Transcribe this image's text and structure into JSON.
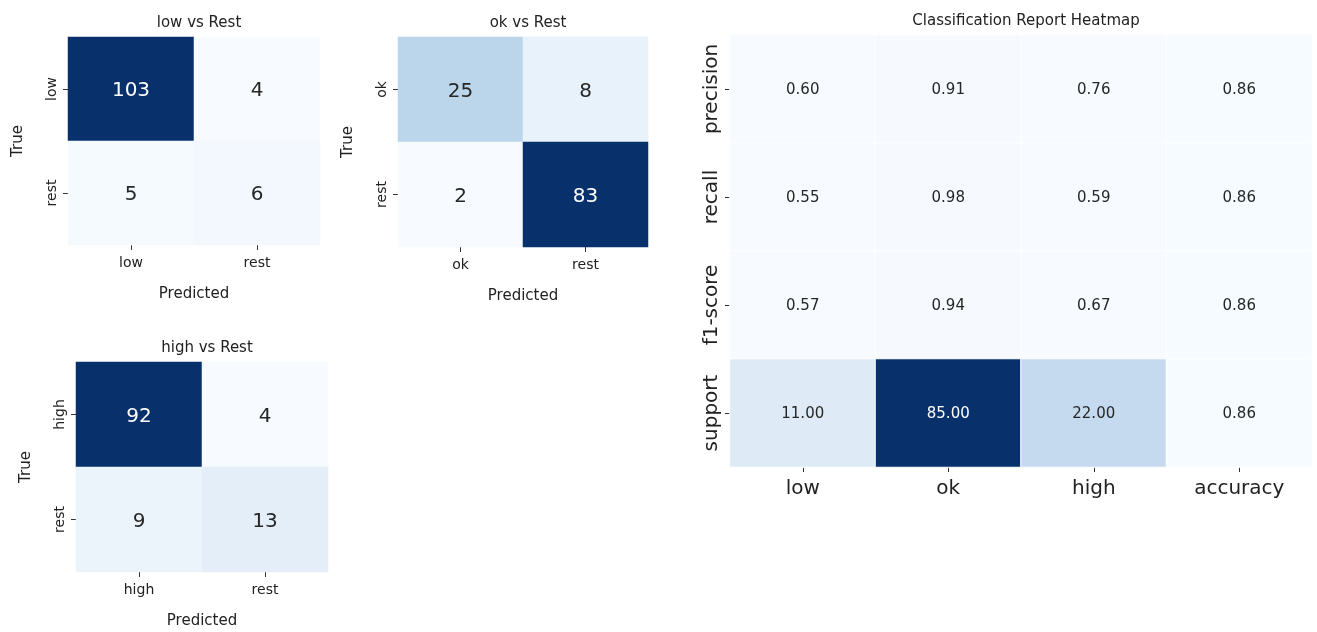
{
  "chart_data": [
    {
      "type": "heatmap",
      "title": "low vs Rest",
      "xlabel": "Predicted",
      "ylabel": "True",
      "categories": [
        "low",
        "rest"
      ],
      "y_categories": [
        "low",
        "rest"
      ],
      "cells": [
        [
          103,
          4
        ],
        [
          5,
          6
        ]
      ],
      "data_labels": true
    },
    {
      "type": "heatmap",
      "title": "ok vs Rest",
      "xlabel": "Predicted",
      "ylabel": "True",
      "categories": [
        "ok",
        "rest"
      ],
      "y_categories": [
        "ok",
        "rest"
      ],
      "cells": [
        [
          25,
          8
        ],
        [
          2,
          83
        ]
      ],
      "data_labels": true
    },
    {
      "type": "heatmap",
      "title": "high vs Rest",
      "xlabel": "Predicted",
      "ylabel": "True",
      "categories": [
        "high",
        "rest"
      ],
      "y_categories": [
        "high",
        "rest"
      ],
      "cells": [
        [
          92,
          4
        ],
        [
          9,
          13
        ]
      ],
      "data_labels": true
    },
    {
      "type": "heatmap",
      "title": "Classification Report Heatmap",
      "categories": [
        "low",
        "ok",
        "high",
        "accuracy"
      ],
      "y_categories": [
        "precision",
        "recall",
        "f1-score",
        "support"
      ],
      "cells": [
        [
          0.6,
          0.91,
          0.76,
          0.86
        ],
        [
          0.55,
          0.98,
          0.59,
          0.86
        ],
        [
          0.57,
          0.94,
          0.67,
          0.86
        ],
        [
          11,
          85,
          22,
          0.86
        ]
      ],
      "cell_labels": [
        [
          "0.60",
          "0.91",
          "0.76",
          "0.86"
        ],
        [
          "0.55",
          "0.98",
          "0.59",
          "0.86"
        ],
        [
          "0.57",
          "0.94",
          "0.67",
          "0.86"
        ],
        [
          "11.00",
          "85.00",
          "22.00",
          "0.86"
        ]
      ]
    }
  ]
}
